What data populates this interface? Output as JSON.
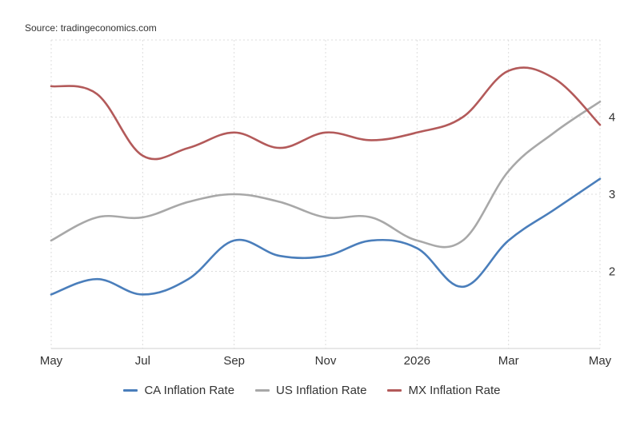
{
  "source": "Source: tradingeconomics.com",
  "chart_data": {
    "type": "line",
    "x": [
      "2025-05",
      "2025-06",
      "2025-07",
      "2025-08",
      "2025-09",
      "2025-10",
      "2025-11",
      "2025-12",
      "2026-01",
      "2026-02",
      "2026-03",
      "2026-04",
      "2026-05"
    ],
    "x_tick_labels": [
      {
        "x": "2025-05",
        "label": "May"
      },
      {
        "x": "2025-07",
        "label": "Jul"
      },
      {
        "x": "2025-09",
        "label": "Sep"
      },
      {
        "x": "2025-11",
        "label": "Nov"
      },
      {
        "x": "2026-01",
        "label": "2026"
      },
      {
        "x": "2026-03",
        "label": "Mar"
      },
      {
        "x": "2026-05",
        "label": "May"
      }
    ],
    "y_ticks": [
      2,
      3,
      4
    ],
    "ylim": [
      1.0,
      5.0
    ],
    "y_axis_side": "right",
    "grid": true,
    "legend_position": "bottom",
    "series": [
      {
        "name": "CA Inflation Rate",
        "color": "#4a7ebb",
        "values": [
          1.7,
          1.9,
          1.7,
          1.9,
          2.4,
          2.2,
          2.2,
          2.4,
          2.3,
          1.8,
          2.4,
          2.8,
          3.2
        ]
      },
      {
        "name": "US Inflation Rate",
        "color": "#a8a8a8",
        "values": [
          2.4,
          2.7,
          2.7,
          2.9,
          3.0,
          2.9,
          2.7,
          2.7,
          2.4,
          2.4,
          3.3,
          3.8,
          4.2
        ]
      },
      {
        "name": "MX Inflation Rate",
        "color": "#b35a5a",
        "values": [
          4.4,
          4.3,
          3.5,
          3.6,
          3.8,
          3.6,
          3.8,
          3.7,
          3.8,
          4.0,
          4.6,
          4.5,
          3.9
        ]
      }
    ]
  }
}
